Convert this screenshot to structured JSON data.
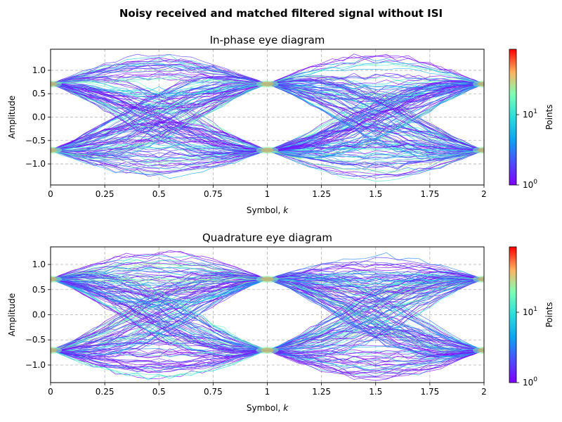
{
  "figure": {
    "suptitle": "Noisy received and matched filtered signal without ISI"
  },
  "chart_data": [
    {
      "type": "heatmap",
      "subtype": "eye-diagram",
      "title": "In-phase eye diagram",
      "xlabel_text": "Symbol, ",
      "xlabel_var": "k",
      "ylabel": "Amplitude",
      "xlim": [
        0,
        2
      ],
      "ylim": [
        -1.45,
        1.45
      ],
      "x_ticks": [
        0,
        0.25,
        0.5,
        0.75,
        1,
        1.25,
        1.5,
        1.75,
        2
      ],
      "x_tick_labels": [
        "0",
        "0.25",
        "0.5",
        "0.75",
        "1",
        "1.25",
        "1.5",
        "1.75",
        "2"
      ],
      "y_ticks": [
        -1.0,
        -0.5,
        0.0,
        0.5,
        1.0
      ],
      "y_tick_labels": [
        "−1.0",
        "−0.5",
        "0.0",
        "0.5",
        "1.0"
      ],
      "grid": true,
      "symbol_levels": [
        -0.707,
        0.707
      ],
      "peak_spread_at_half_symbol": 0.62,
      "colorbar": {
        "label": "Points",
        "scale": "log",
        "range": [
          1,
          80
        ],
        "tick_values": [
          1,
          10
        ],
        "tick_base": "10",
        "tick_exponents": [
          "0",
          "1"
        ],
        "colormap": "rainbow"
      }
    },
    {
      "type": "heatmap",
      "subtype": "eye-diagram",
      "title": "Quadrature eye diagram",
      "xlabel_text": "Symbol, ",
      "xlabel_var": "k",
      "ylabel": "Amplitude",
      "xlim": [
        0,
        2
      ],
      "ylim": [
        -1.35,
        1.35
      ],
      "x_ticks": [
        0,
        0.25,
        0.5,
        0.75,
        1,
        1.25,
        1.5,
        1.75,
        2
      ],
      "x_tick_labels": [
        "0",
        "0.25",
        "0.5",
        "0.75",
        "1",
        "1.25",
        "1.5",
        "1.75",
        "2"
      ],
      "y_ticks": [
        -1.0,
        -0.5,
        0.0,
        0.5,
        1.0
      ],
      "y_tick_labels": [
        "−1.0",
        "−0.5",
        "0.0",
        "0.5",
        "1.0"
      ],
      "grid": true,
      "symbol_levels": [
        -0.707,
        0.707
      ],
      "peak_spread_at_half_symbol": 0.58,
      "colorbar": {
        "label": "Points",
        "scale": "log",
        "range": [
          1,
          80
        ],
        "tick_values": [
          1,
          10
        ],
        "tick_base": "10",
        "tick_exponents": [
          "0",
          "1"
        ],
        "colormap": "rainbow"
      }
    }
  ],
  "colors": {
    "axis": "#000000",
    "grid": "#b0b0b0",
    "background": "#ffffff"
  }
}
